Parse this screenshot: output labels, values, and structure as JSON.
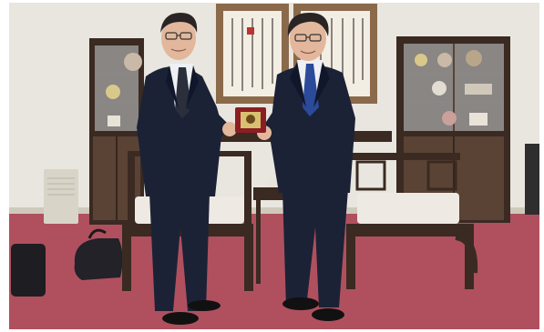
{
  "photo": {
    "subject": "two-men-exchanging-plaque",
    "colors": {
      "wall": "#e9e6df",
      "carpet": "#b0505e",
      "carpet_shadow": "#8f3b49",
      "wood": "#3a2a22",
      "wood_light": "#5a4334",
      "suit": "#1b2236",
      "suit_shadow": "#11172a",
      "shirt": "#eef0f4",
      "skin": "#e2b79c",
      "hair": "#2a2424",
      "cushion": "#efe9e3",
      "scroll_frame": "#8a6a4a",
      "scroll_paper": "#f3eee4",
      "tie_left": "#2b2f3c",
      "tie_right": "#2c4a9a",
      "plaque": "#8b1e23",
      "humidifier": "#d9d4c8"
    }
  }
}
